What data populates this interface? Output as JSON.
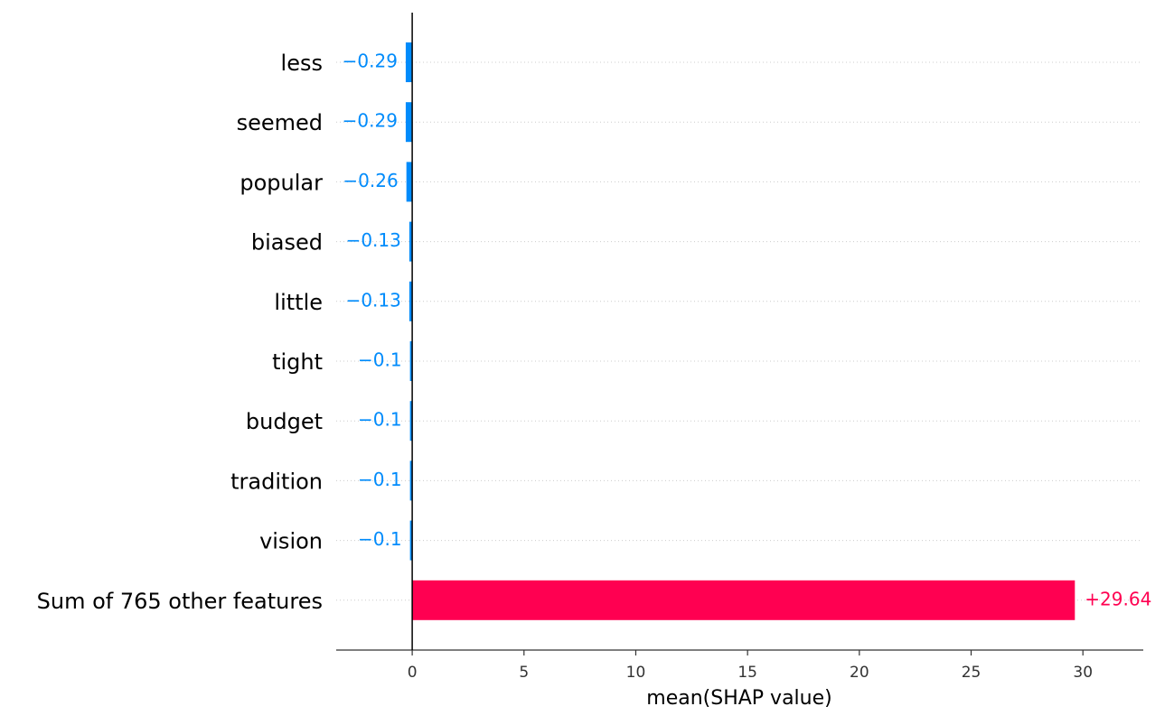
{
  "chart_data": {
    "type": "bar",
    "orientation": "horizontal",
    "xlabel": "mean(SHAP value)",
    "categories": [
      "less",
      "seemed",
      "popular",
      "biased",
      "little",
      "tight",
      "budget",
      "tradition",
      "vision",
      "Sum of 765 other features"
    ],
    "values": [
      -0.29,
      -0.29,
      -0.26,
      -0.13,
      -0.13,
      -0.1,
      -0.1,
      -0.1,
      -0.1,
      29.64
    ],
    "value_labels": [
      "−0.29",
      "−0.29",
      "−0.26",
      "−0.13",
      "−0.13",
      "−0.1",
      "−0.1",
      "−0.1",
      "−0.1",
      "+29.64"
    ],
    "negative_color": "#008bfb",
    "positive_color": "#ff0051",
    "xlim": [
      -3.4,
      32.7
    ],
    "xticks": [
      0,
      5,
      10,
      15,
      20,
      25,
      30
    ]
  }
}
